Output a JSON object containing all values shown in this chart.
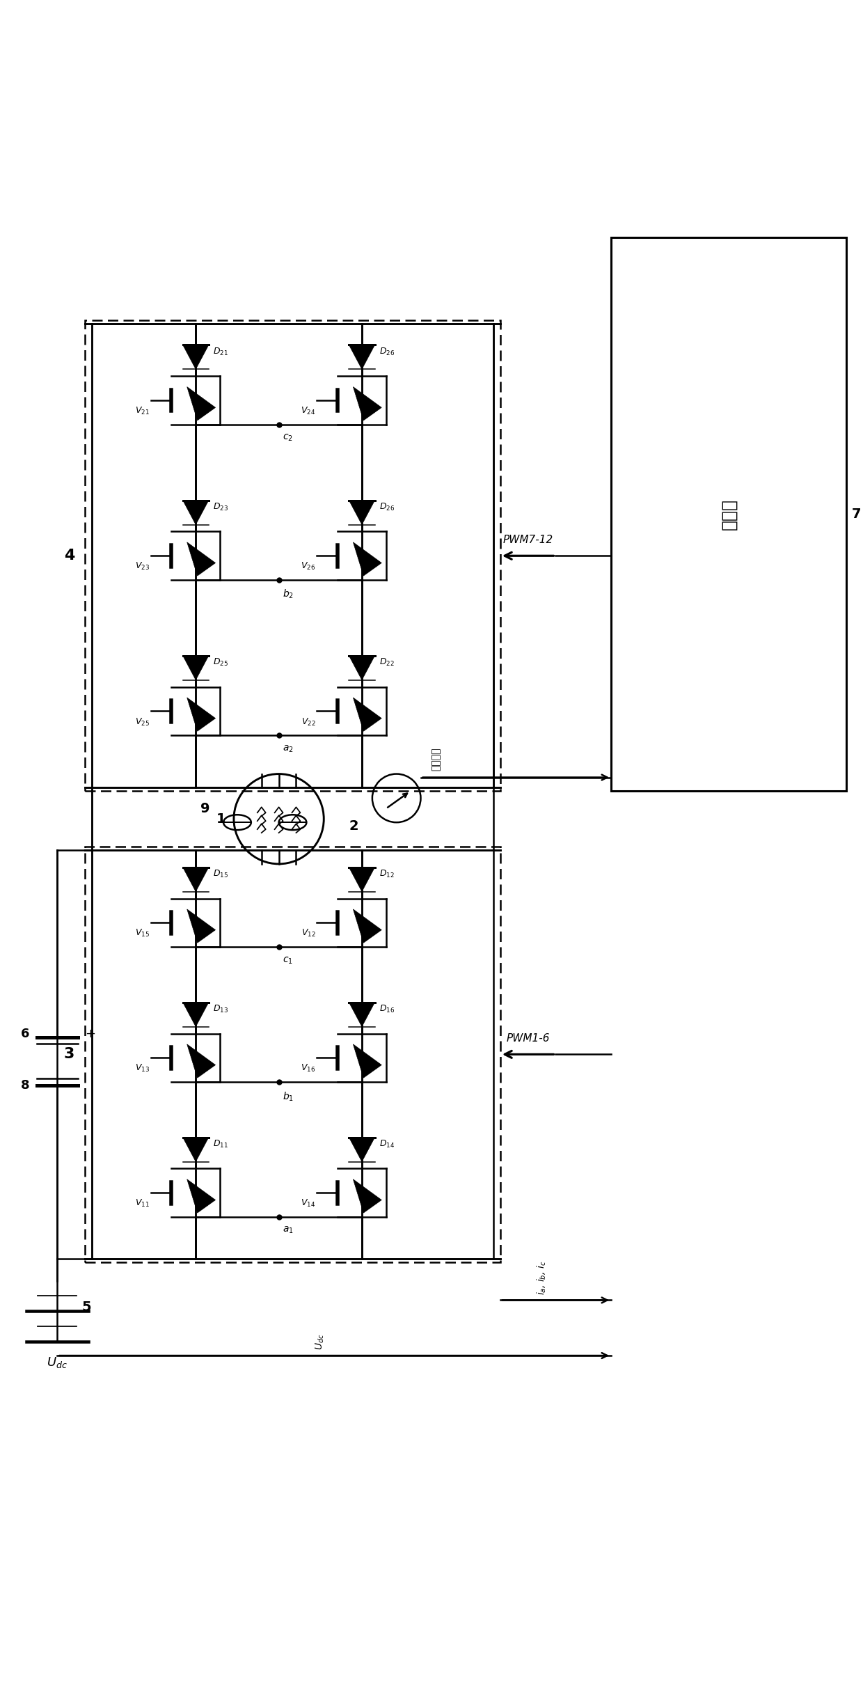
{
  "fig_width": 12.4,
  "fig_height": 24.36,
  "dpi": 100,
  "bg_color": "#ffffff",
  "lw": 1.8,
  "controller_text": "控制器",
  "pwm1_label": "PWM1-6",
  "pwm2_label": "PWM7-12",
  "pos_signal": "位置信号",
  "current_label": "i_a, i_b, i_c",
  "udc_label": "Udc"
}
